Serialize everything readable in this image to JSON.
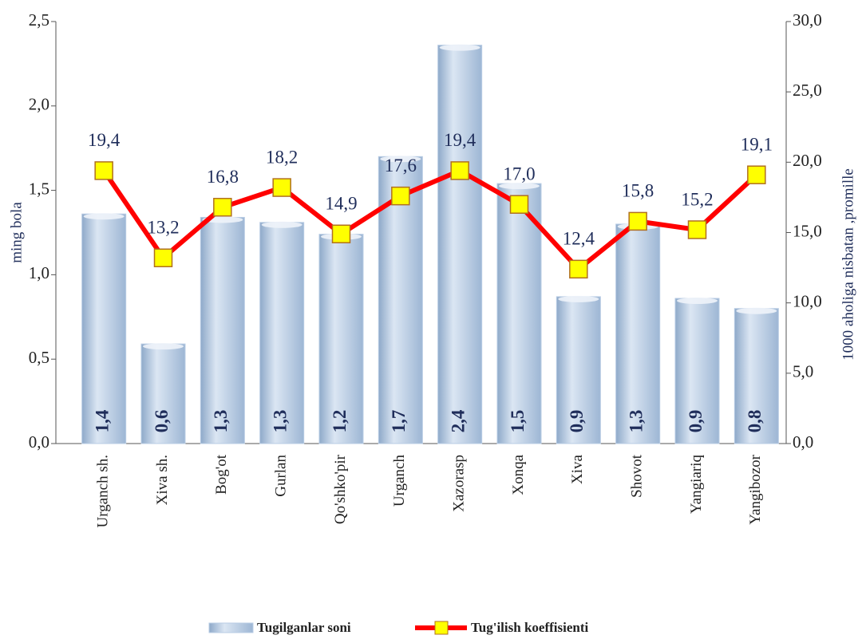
{
  "chart_data": {
    "type": "bar_line",
    "categories": [
      "Urganch sh.",
      "Xiva sh.",
      "Bog'ot",
      "Gurlan",
      "Qo'shko'pir",
      "Urganch",
      "Xazorasp",
      "Xonqa",
      "Xiva",
      "Shovot",
      "Yangiariq",
      "Yangibozor"
    ],
    "series": [
      {
        "name": "Tugilganlar soni",
        "type": "bar",
        "color": "#b8cce4",
        "values": [
          1.36,
          0.59,
          1.34,
          1.31,
          1.24,
          1.7,
          2.36,
          1.54,
          0.87,
          1.3,
          0.86,
          0.8
        ],
        "value_labels": [
          "1,4",
          "0,6",
          "1,3",
          "1,3",
          "1,2",
          "1,7",
          "2,4",
          "1,5",
          "0,9",
          "1,3",
          "0,9",
          "0,8"
        ]
      },
      {
        "name": "Tug'ilish koeffisienti",
        "type": "line",
        "axis": "y2",
        "color": "#ff0000",
        "marker_color": "#ffff00",
        "values": [
          19.4,
          13.2,
          16.8,
          18.2,
          14.9,
          17.6,
          19.4,
          17.0,
          12.4,
          15.8,
          15.2,
          19.1
        ],
        "value_labels": [
          "19,4",
          "13,2",
          "16,8",
          "18,2",
          "14,9",
          "17,6",
          "19,4",
          "17,0",
          "12,4",
          "15,8",
          "15,2",
          "19,1"
        ]
      }
    ],
    "ylabel": "ming bola",
    "y2label": "1000 aholiga nisbatan ,promille",
    "ylim": [
      0,
      2.5
    ],
    "yticks": [
      {
        "value": 0,
        "label": "0,0"
      },
      {
        "value": 0.5,
        "label": "0,5"
      },
      {
        "value": 1,
        "label": "1,0"
      },
      {
        "value": 1.5,
        "label": "1,5"
      },
      {
        "value": 2,
        "label": "2,0"
      },
      {
        "value": 2.5,
        "label": "2,5"
      }
    ],
    "y2lim": [
      0,
      30
    ],
    "y2ticks": [
      {
        "value": 0,
        "label": "0,0"
      },
      {
        "value": 5,
        "label": "5,0"
      },
      {
        "value": 10,
        "label": "10,0"
      },
      {
        "value": 15,
        "label": "15,0"
      },
      {
        "value": 20,
        "label": "20,0"
      },
      {
        "value": 25,
        "label": "25,0"
      },
      {
        "value": 30,
        "label": "30,0"
      }
    ],
    "legend": "bottom"
  }
}
